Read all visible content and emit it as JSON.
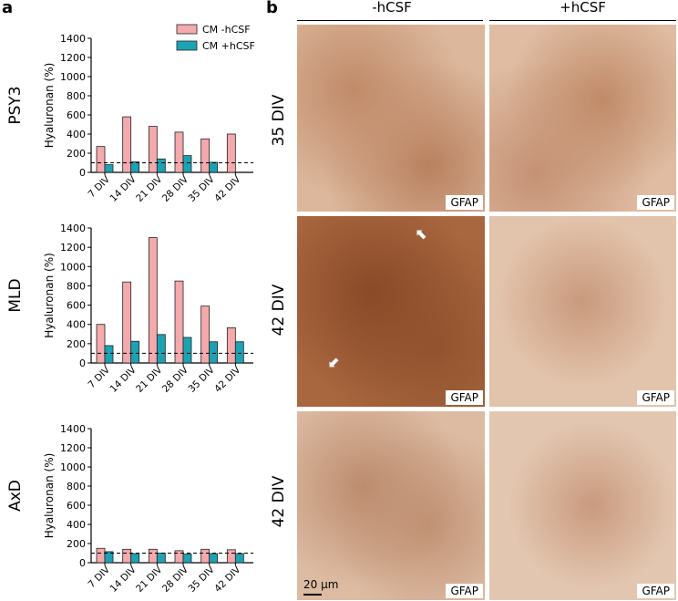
{
  "panel_a": "a",
  "panel_b": "b",
  "legend": [
    "CM -hCSF",
    "CM +hCSF"
  ],
  "colors": {
    "minus": "#f4a9ad",
    "plus": "#1ba3b4",
    "edge": "#222222"
  },
  "chart_data": [
    {
      "type": "bar",
      "row_label": "PSY3",
      "ylabel": "Hyaluronan (%)",
      "categories": [
        "7 DIV",
        "14 DIV",
        "21 DIV",
        "28 DIV",
        "35 DIV",
        "42 DIV"
      ],
      "yticks": [
        "0",
        "200",
        "400",
        "600",
        "800",
        "1000",
        "1200",
        "1400"
      ],
      "ylim": [
        0,
        1400
      ],
      "reference_line": 100,
      "series": [
        {
          "name": "CM -hCSF",
          "values": [
            270,
            580,
            480,
            420,
            350,
            400
          ]
        },
        {
          "name": "CM +hCSF",
          "values": [
            80,
            110,
            140,
            175,
            105,
            0
          ]
        }
      ]
    },
    {
      "type": "bar",
      "row_label": "MLD",
      "ylabel": "Hyaluronan (%)",
      "categories": [
        "7 DIV",
        "14 DIV",
        "21 DIV",
        "28 DIV",
        "35 DIV",
        "42 DIV"
      ],
      "yticks": [
        "0",
        "200",
        "400",
        "600",
        "800",
        "1000",
        "1200",
        "1400"
      ],
      "ylim": [
        0,
        1400
      ],
      "reference_line": 100,
      "series": [
        {
          "name": "CM -hCSF",
          "values": [
            400,
            840,
            1300,
            850,
            590,
            365
          ]
        },
        {
          "name": "CM +hCSF",
          "values": [
            180,
            225,
            295,
            265,
            220,
            220
          ]
        }
      ]
    },
    {
      "type": "bar",
      "row_label": "AxD",
      "ylabel": "Hyaluronan (%)",
      "categories": [
        "7 DIV",
        "14 DIV",
        "21 DIV",
        "28 DIV",
        "35 DIV",
        "42 DIV"
      ],
      "yticks": [
        "0",
        "200",
        "400",
        "600",
        "800",
        "1000",
        "1200",
        "1400"
      ],
      "ylim": [
        0,
        1400
      ],
      "reference_line": 100,
      "series": [
        {
          "name": "CM -hCSF",
          "values": [
            150,
            140,
            140,
            125,
            140,
            135
          ]
        },
        {
          "name": "CM +hCSF",
          "values": [
            115,
            95,
            100,
            90,
            95,
            95
          ]
        }
      ]
    }
  ],
  "micrographs": {
    "columns": [
      "-hCSF",
      "+hCSF"
    ],
    "rows": [
      "35 DIV",
      "42 DIV",
      "42 DIV"
    ],
    "stain_label": "GFAP",
    "scale_bar": "20 µm"
  }
}
